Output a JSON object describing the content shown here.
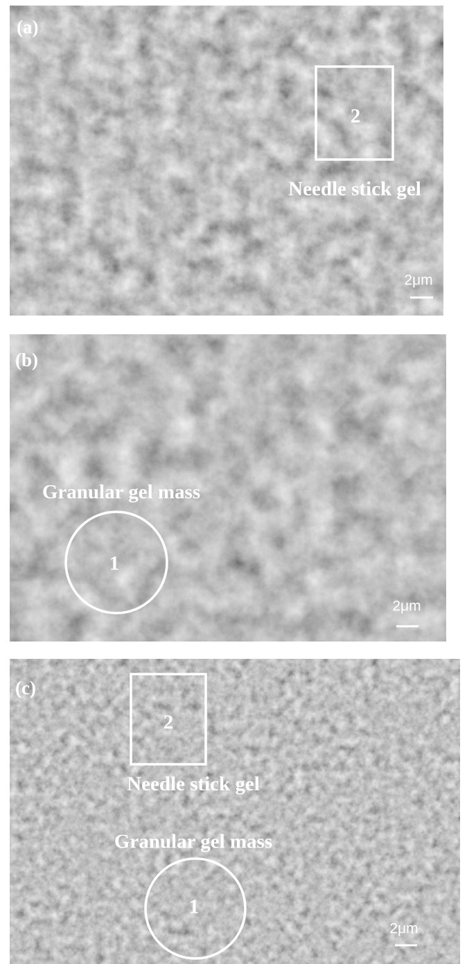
{
  "panels": [
    {
      "label": "(a)",
      "box_label": "2",
      "annotation": "Needle stick gel",
      "scale_bar": "2μm"
    },
    {
      "label": "(b)",
      "annotation": "Granular gel mass",
      "circle_label": "1",
      "scale_bar": "2μm"
    },
    {
      "label": "(c)",
      "box_label": "2",
      "box_annotation": "Needle stick gel",
      "circle_annotation": "Granular gel mass",
      "circle_label": "1",
      "scale_bar": "2μm"
    }
  ]
}
